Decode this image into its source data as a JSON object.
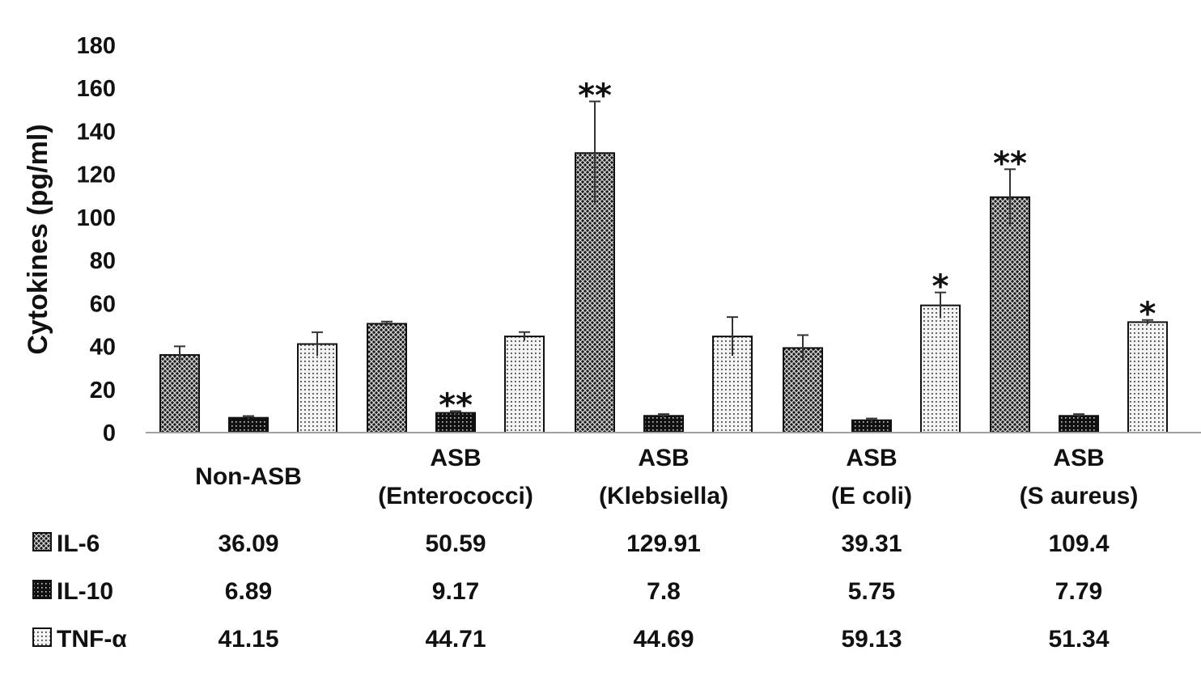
{
  "chart_data": {
    "type": "bar",
    "title": "",
    "xlabel": "",
    "ylabel": "Cytokines (pg/ml)",
    "ylim": [
      0,
      180
    ],
    "yticks": [
      "0",
      "20",
      "40",
      "60",
      "80",
      "100",
      "120",
      "140",
      "160",
      "180"
    ],
    "categories": [
      [
        "Non-ASB"
      ],
      [
        "ASB",
        "(Enterococci)"
      ],
      [
        "ASB",
        "(Klebsiella)"
      ],
      [
        "ASB",
        "(E coli)"
      ],
      [
        "ASB",
        "(S aureus)"
      ]
    ],
    "series": [
      {
        "name": "IL-6",
        "pattern": "crosshatch-dark",
        "values": [
          36.09,
          50.59,
          129.91,
          39.31,
          109.4
        ],
        "value_labels": [
          "36.09",
          "50.59",
          "129.91",
          "39.31",
          "109.4"
        ],
        "errors": [
          4,
          1,
          24,
          6,
          13
        ],
        "significance": [
          "",
          "",
          "**",
          "",
          "**"
        ]
      },
      {
        "name": "IL-10",
        "pattern": "dots-dense",
        "values": [
          6.89,
          9.17,
          7.8,
          5.75,
          7.79
        ],
        "value_labels": [
          "6.89",
          "9.17",
          "7.8",
          "5.75",
          "7.79"
        ],
        "errors": [
          0.8,
          0.8,
          0.8,
          0.8,
          0.8
        ],
        "significance": [
          "",
          "**",
          "",
          "",
          ""
        ]
      },
      {
        "name": "TNF-α",
        "pattern": "dots-light",
        "values": [
          41.15,
          44.71,
          44.69,
          59.13,
          51.34
        ],
        "value_labels": [
          "41.15",
          "44.71",
          "44.69",
          "59.13",
          "51.34"
        ],
        "errors": [
          5.5,
          2,
          9,
          6,
          1
        ],
        "significance": [
          "",
          "",
          "",
          "*",
          "*"
        ]
      }
    ],
    "legend": "data-table-below",
    "grid": false,
    "colors": {
      "ink": "#111111",
      "axis": "#a0a0a0",
      "background": "#ffffff"
    }
  }
}
